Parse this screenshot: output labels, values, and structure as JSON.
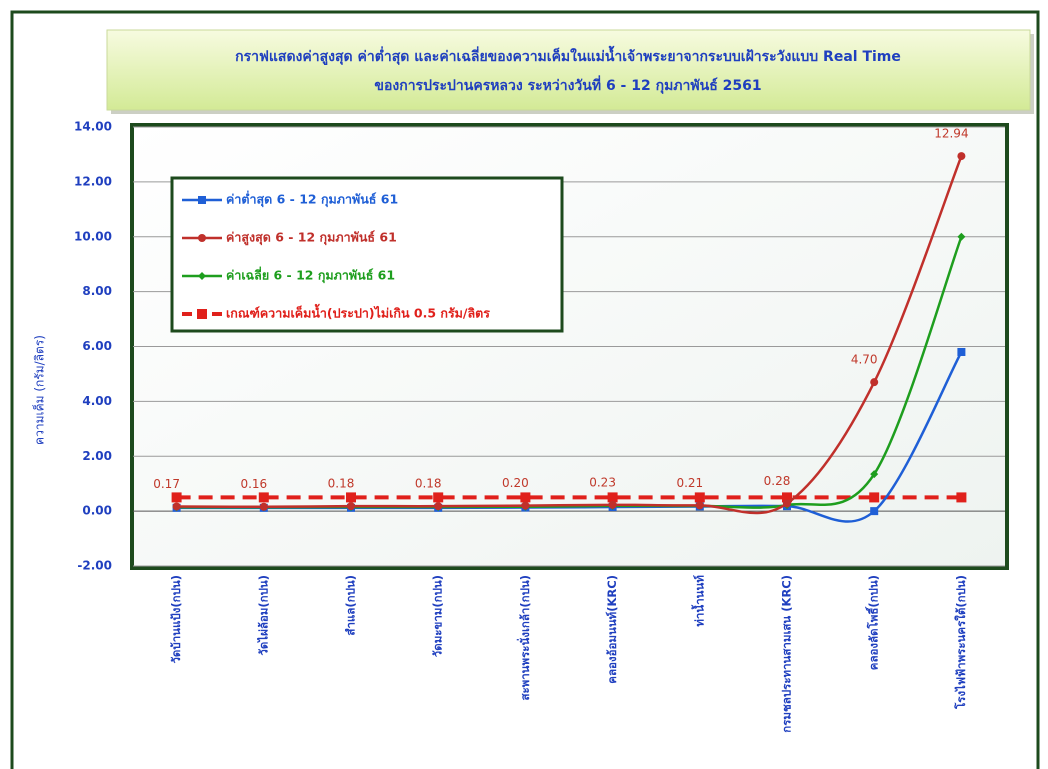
{
  "chart_data": {
    "type": "line",
    "title": [
      "กราฟแสดงค่าสูงสุด ค่าต่ำสุด และค่าเฉลี่ยของความเค็มในแม่น้ำเจ้าพระยาจากระบบเฝ้าระวังแบบ Real Time",
      "ของการประปานครหลวง ระหว่างวันที่  6 - 12 กุมภาพันธ์ 2561"
    ],
    "y_label": "ความเค็ม (กรัม/ลิตร)",
    "categories": [
      "วัดบ้านแป้ง(กปน)",
      "วัดไผ่ล้อม(กปน)",
      "สำแล(กปน)",
      "วัดมะขาม(กปน)",
      "สะพานพระนั่งเกล้า(กปน)",
      "คลองอ้อมนนท์(KRC)",
      "ท่าน้ำนนท์",
      "กรมชลประทานสามเสน (KRC)",
      "คลองลัดโพธิ์(กปน)",
      "โรงไฟฟ้าพระนครใต้(กปน)"
    ],
    "series": [
      {
        "name": "ค่าต่ำสุด 6 - 12 กุมภาพันธ์ 61",
        "color": "#1f5fd6",
        "marker": "square",
        "values": [
          0.12,
          0.12,
          0.12,
          0.12,
          0.13,
          0.15,
          0.17,
          0.18,
          0.0,
          5.8
        ]
      },
      {
        "name": "ค่าสูงสุด 6 - 12 กุมภาพันธ์ 61",
        "color": "#c0302b",
        "marker": "circle",
        "values": [
          0.17,
          0.16,
          0.18,
          0.18,
          0.2,
          0.23,
          0.21,
          0.28,
          4.7,
          12.94
        ],
        "value_labels": [
          "0.17",
          "0.16",
          "0.18",
          "0.18",
          "0.20",
          "0.23",
          "0.21",
          "0.28",
          "4.70",
          "12.94"
        ]
      },
      {
        "name": "ค่าเฉลี่ย 6 - 12 กุมภาพันธ์ 61",
        "color": "#1e9e1e",
        "marker": "diamond",
        "values": [
          0.14,
          0.14,
          0.15,
          0.15,
          0.16,
          0.19,
          0.19,
          0.22,
          1.35,
          10.0
        ]
      },
      {
        "name": "เกณฑ์ความเค็มน้ำ(ประปา)ไม่เกิน 0.5 กรัม/ลิตร",
        "color": "#e0201b",
        "marker": "bigsquare",
        "dashed": true,
        "values": [
          0.5,
          0.5,
          0.5,
          0.5,
          0.5,
          0.5,
          0.5,
          0.5,
          0.5,
          0.5
        ]
      }
    ],
    "ylim": [
      -2,
      14
    ],
    "yticks": [
      {
        "value": -2,
        "label": "-2.00"
      },
      {
        "value": 0,
        "label": "0.00"
      },
      {
        "value": 2,
        "label": "2.00"
      },
      {
        "value": 4,
        "label": "4.00"
      },
      {
        "value": 6,
        "label": "6.00"
      },
      {
        "value": 8,
        "label": "8.00"
      },
      {
        "value": 10,
        "label": "10.00"
      },
      {
        "value": 12,
        "label": "12.00"
      },
      {
        "value": 14,
        "label": "14.00"
      }
    ],
    "grid": true
  }
}
